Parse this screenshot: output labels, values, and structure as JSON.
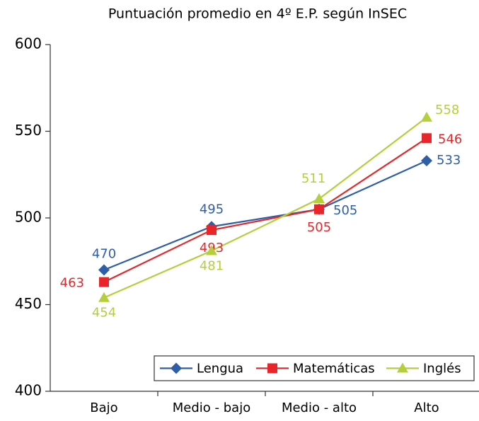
{
  "chart_data": {
    "type": "line",
    "title": "Puntuación promedio en 4º E.P. según InSEC",
    "categories": [
      "Bajo",
      "Medio - bajo",
      "Medio - alto",
      "Alto"
    ],
    "series": [
      {
        "name": "Lengua",
        "color": "#2e5ea8",
        "marker": "diamond",
        "values": [
          470,
          495,
          505,
          533
        ]
      },
      {
        "name": "Matemáticas",
        "color": "#e8262a",
        "marker": "square",
        "values": [
          463,
          493,
          505,
          546
        ]
      },
      {
        "name": "Inglés",
        "color": "#b5cf3a",
        "marker": "triangle",
        "values": [
          454,
          481,
          511,
          558
        ]
      }
    ],
    "ylim": [
      400,
      600
    ],
    "yticks": [
      400,
      450,
      500,
      550,
      600
    ],
    "grid": false,
    "legend": "lower right"
  }
}
